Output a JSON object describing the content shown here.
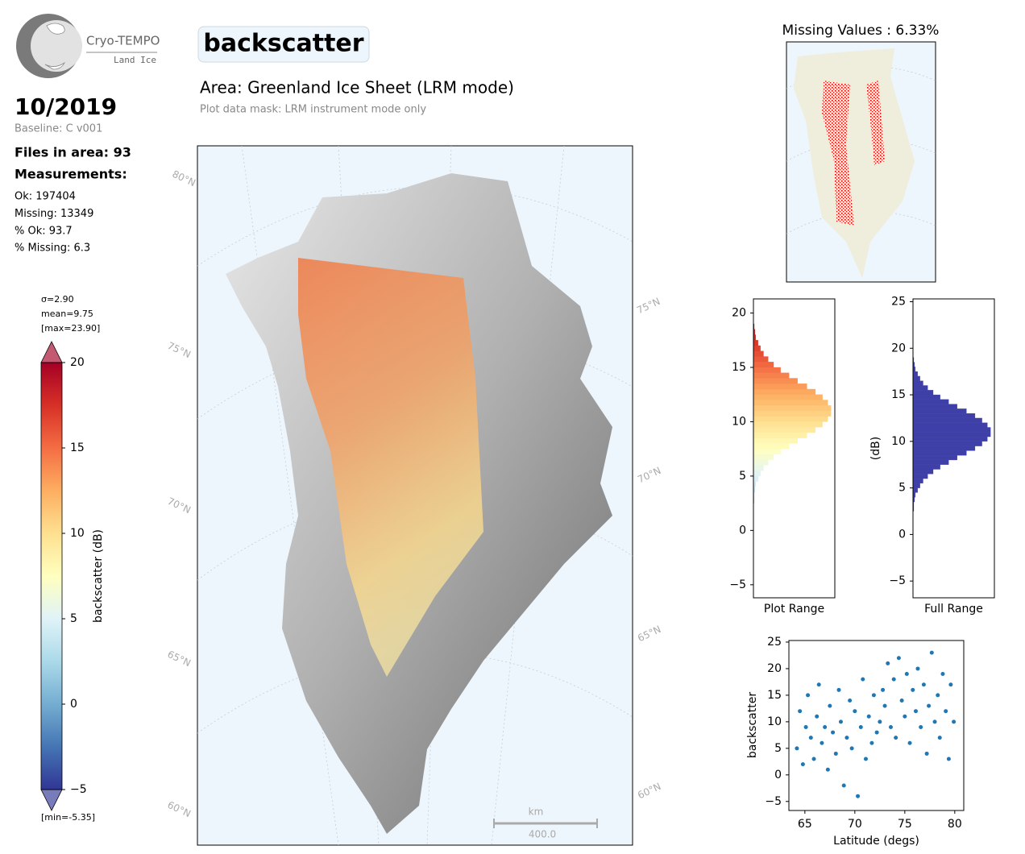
{
  "header": {
    "logo_title": "Cryo-TEMPO",
    "logo_subtitle": "Land Ice",
    "date": "10/2019",
    "baseline": "Baseline: C v001",
    "files": "Files in area: 93",
    "measurements_title": "Measurements:",
    "measurements": [
      "Ok: 197404",
      "Missing: 13349",
      "% Ok: 93.7",
      "% Missing: 6.3"
    ],
    "variable": "backscatter",
    "area": "Area: Greenland Ice Sheet (LRM mode)",
    "mask": "Plot data mask: LRM instrument mode only"
  },
  "chart_data": [
    {
      "type": "colorbar",
      "label": "backscatter (dB)",
      "stats": [
        "σ=2.90",
        "mean=9.75",
        "[max=23.90]"
      ],
      "min_label": "[min=-5.35]",
      "ylim": [
        -5,
        20
      ],
      "yticks": [
        20,
        15,
        10,
        5,
        0,
        {
          "value": -5,
          "label": "−5"
        }
      ],
      "extend": "both",
      "colormap": [
        "#313695",
        "#4575b4",
        "#74add1",
        "#abd9e9",
        "#e0f3f8",
        "#ffffbf",
        "#fee090",
        "#fdae61",
        "#f46d43",
        "#d73027",
        "#a50026"
      ]
    },
    {
      "type": "map",
      "lat_labels_left": [
        "80°N",
        "75°N",
        "70°N",
        "65°N",
        "60°N"
      ],
      "lat_labels_right": [
        "75°N",
        "70°N",
        "65°N",
        "60°N"
      ],
      "scalebar_unit": "km",
      "scalebar_label": "400.0"
    },
    {
      "type": "map",
      "title": "Missing Values : 6.33%",
      "marker_color": "#e00000"
    },
    {
      "type": "histogram",
      "orientation": "horizontal",
      "xlabel": "Plot Range",
      "color_by_value": true,
      "bins": [
        0,
        0.5,
        1,
        1.5,
        2,
        2.5,
        3,
        3.5,
        4,
        4.5,
        5,
        5.5,
        6,
        6.5,
        7,
        7.5,
        8,
        8.5,
        9,
        9.5,
        10,
        10.5,
        11,
        11.5,
        12,
        12.5,
        13,
        13.5,
        14,
        14.5,
        15,
        15.5,
        16,
        16.5,
        17,
        17.5,
        18,
        18.5,
        19
      ],
      "counts": [
        0,
        0,
        0,
        0,
        0,
        1,
        1,
        2,
        3,
        6,
        9,
        13,
        19,
        26,
        35,
        46,
        57,
        69,
        80,
        89,
        96,
        100,
        100,
        96,
        89,
        80,
        69,
        57,
        46,
        35,
        26,
        19,
        13,
        9,
        6,
        3,
        2,
        1
      ],
      "xlim": [
        0,
        105
      ],
      "ylim": [
        -6.2,
        21.3
      ],
      "yticks": [
        20,
        15,
        10,
        5,
        0,
        {
          "value": -5,
          "label": "−5"
        }
      ]
    },
    {
      "type": "histogram",
      "orientation": "horizontal",
      "xlabel": "Full Range",
      "ylabel": "(dB)",
      "color": "#3f3fa8",
      "bins": [
        0,
        0.5,
        1,
        1.5,
        2,
        2.5,
        3,
        3.5,
        4,
        4.5,
        5,
        5.5,
        6,
        6.5,
        7,
        7.5,
        8,
        8.5,
        9,
        9.5,
        10,
        10.5,
        11,
        11.5,
        12,
        12.5,
        13,
        13.5,
        14,
        14.5,
        15,
        15.5,
        16,
        16.5,
        17,
        17.5,
        18,
        18.5,
        19
      ],
      "counts": [
        0,
        0,
        0,
        0,
        0,
        1,
        1,
        2,
        3,
        6,
        9,
        13,
        19,
        26,
        35,
        46,
        57,
        69,
        80,
        89,
        96,
        100,
        100,
        96,
        89,
        80,
        69,
        57,
        46,
        35,
        26,
        19,
        13,
        9,
        6,
        3,
        2,
        1
      ],
      "xlim": [
        0,
        105
      ],
      "ylim": [
        -6.8,
        25.3
      ],
      "yticks": [
        25,
        20,
        15,
        10,
        5,
        0,
        {
          "value": -5,
          "label": "−5"
        }
      ]
    },
    {
      "type": "scatter",
      "xlabel": "Latitude (degs)",
      "ylabel": "backscatter",
      "color": "#1f77b4",
      "x": [
        64.2,
        64.5,
        64.8,
        65.1,
        65.3,
        65.6,
        65.9,
        66.2,
        66.4,
        66.7,
        67.0,
        67.3,
        67.5,
        67.8,
        68.1,
        68.4,
        68.6,
        68.9,
        69.2,
        69.5,
        69.7,
        70.0,
        70.3,
        70.6,
        70.8,
        71.1,
        71.4,
        71.7,
        71.9,
        72.2,
        72.5,
        72.8,
        73.0,
        73.3,
        73.6,
        73.9,
        74.1,
        74.4,
        74.7,
        75.0,
        75.2,
        75.5,
        75.8,
        76.1,
        76.3,
        76.6,
        76.9,
        77.2,
        77.4,
        77.7,
        78.0,
        78.3,
        78.5,
        78.8,
        79.1,
        79.4,
        79.6,
        79.9
      ],
      "y": [
        5,
        12,
        2,
        9,
        15,
        7,
        3,
        11,
        17,
        6,
        9,
        1,
        13,
        8,
        4,
        16,
        10,
        -2,
        7,
        14,
        5,
        12,
        -4,
        9,
        18,
        3,
        11,
        6,
        15,
        8,
        10,
        16,
        13,
        21,
        9,
        18,
        7,
        22,
        14,
        11,
        19,
        6,
        16,
        12,
        20,
        9,
        17,
        4,
        13,
        23,
        10,
        15,
        7,
        19,
        12,
        3,
        17,
        10
      ],
      "xlim": [
        63.4,
        80.9
      ],
      "ylim": [
        -6.7,
        25.3
      ],
      "xticks": [
        65,
        70,
        75,
        80
      ],
      "yticks": [
        25,
        20,
        15,
        10,
        5,
        0,
        {
          "value": -5,
          "label": "−5"
        }
      ]
    }
  ]
}
